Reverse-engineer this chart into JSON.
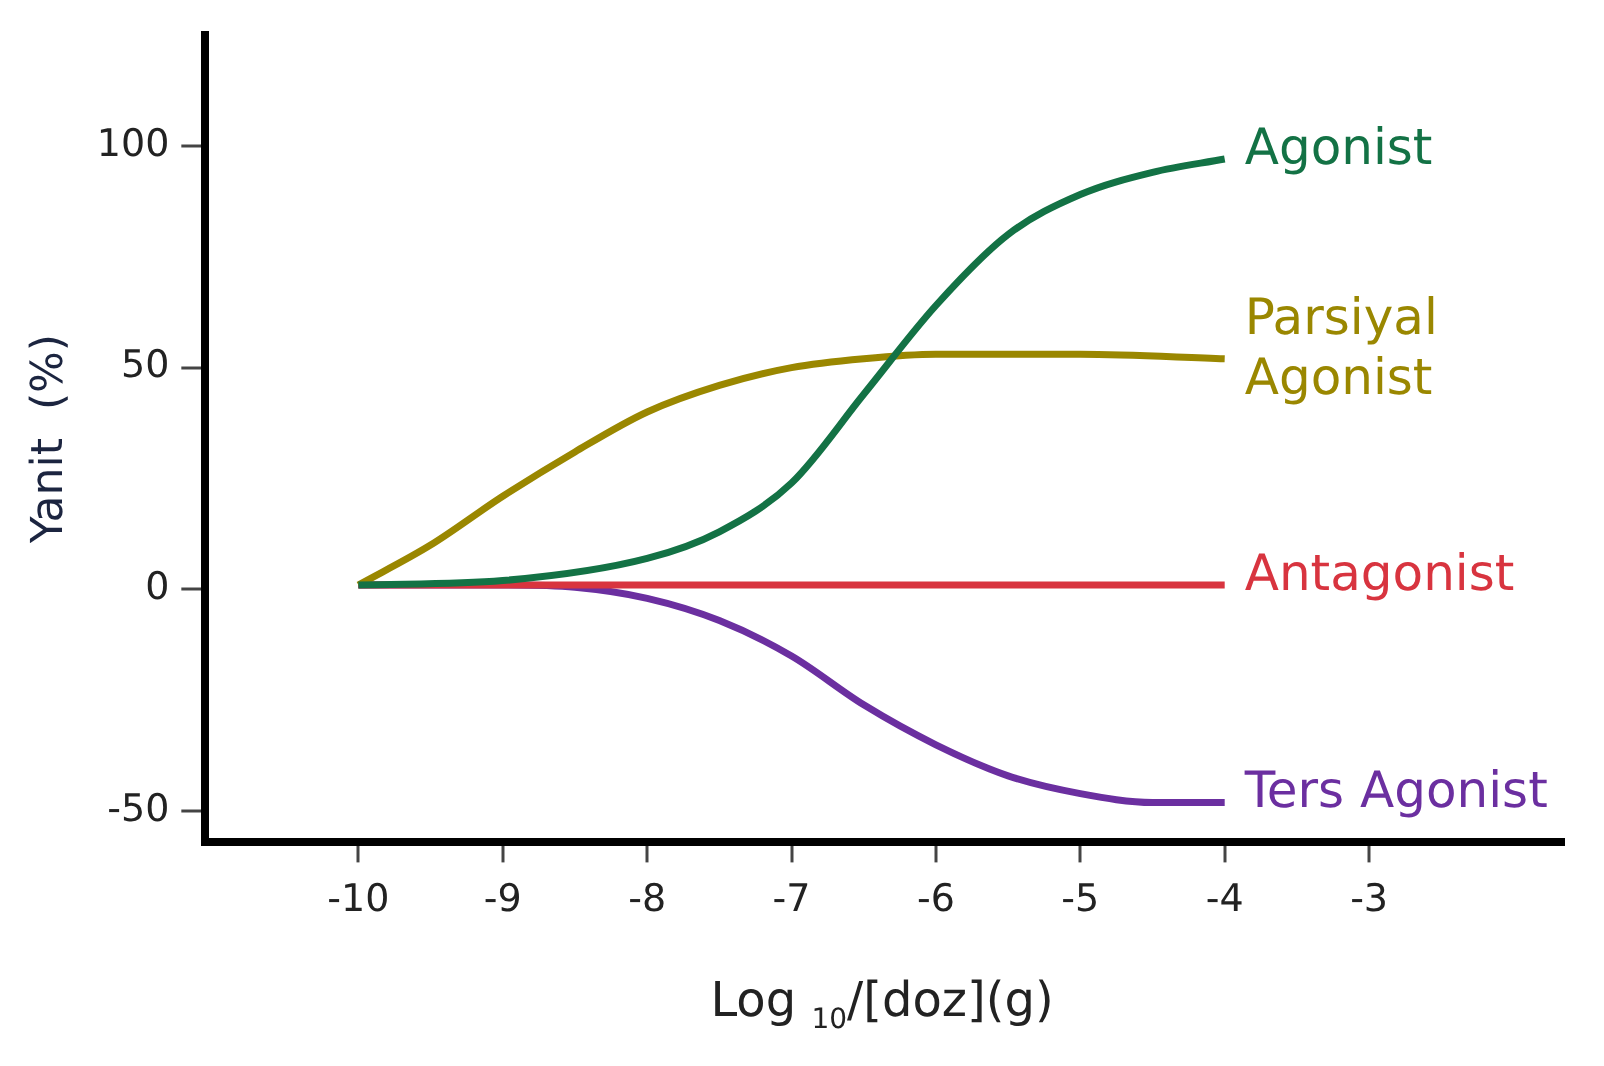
{
  "chart_data": {
    "type": "line",
    "xlabel": "Log $_{10}$/[doz](g)",
    "ylabel": "Yanit  (%)",
    "xlim": [
      -11.06,
      -1.65
    ],
    "ylim": [
      -57,
      125
    ],
    "xticks": [
      -10,
      -9,
      -8,
      -7,
      -6,
      -5,
      -4,
      -3
    ],
    "yticks": [
      -50,
      0,
      50,
      100
    ],
    "grid": false,
    "legend": false,
    "marker": "none",
    "line_style": "solid",
    "series": [
      {
        "name": "Agonist",
        "color": "#137245",
        "x": [
          -10,
          -9,
          -8,
          -7.5,
          -7,
          -6.5,
          -6,
          -5.5,
          -5,
          -4.5,
          -4
        ],
        "values": [
          1,
          2,
          7,
          13,
          24,
          44,
          64,
          80,
          89,
          94,
          97
        ]
      },
      {
        "name": "Parsiyal\nAgonist",
        "color": "#9a8700",
        "x": [
          -10,
          -9.5,
          -9,
          -8.5,
          -8,
          -7.5,
          -7,
          -6.5,
          -6,
          -5,
          -4
        ],
        "values": [
          1,
          10,
          21,
          31,
          40,
          46,
          50,
          52,
          53,
          53,
          52
        ]
      },
      {
        "name": "Antagonist",
        "color": "#d8343f",
        "x": [
          -10,
          -4
        ],
        "values": [
          1,
          1
        ]
      },
      {
        "name": "Ters Agonist",
        "color": "#6b2fa0",
        "x": [
          -10,
          -9,
          -8.5,
          -8,
          -7.5,
          -7,
          -6.5,
          -6,
          -5.5,
          -5,
          -4.5,
          -4
        ],
        "values": [
          1,
          1,
          0.5,
          -2,
          -7,
          -15,
          -26,
          -35,
          -42,
          -46,
          -48,
          -48
        ]
      }
    ]
  }
}
